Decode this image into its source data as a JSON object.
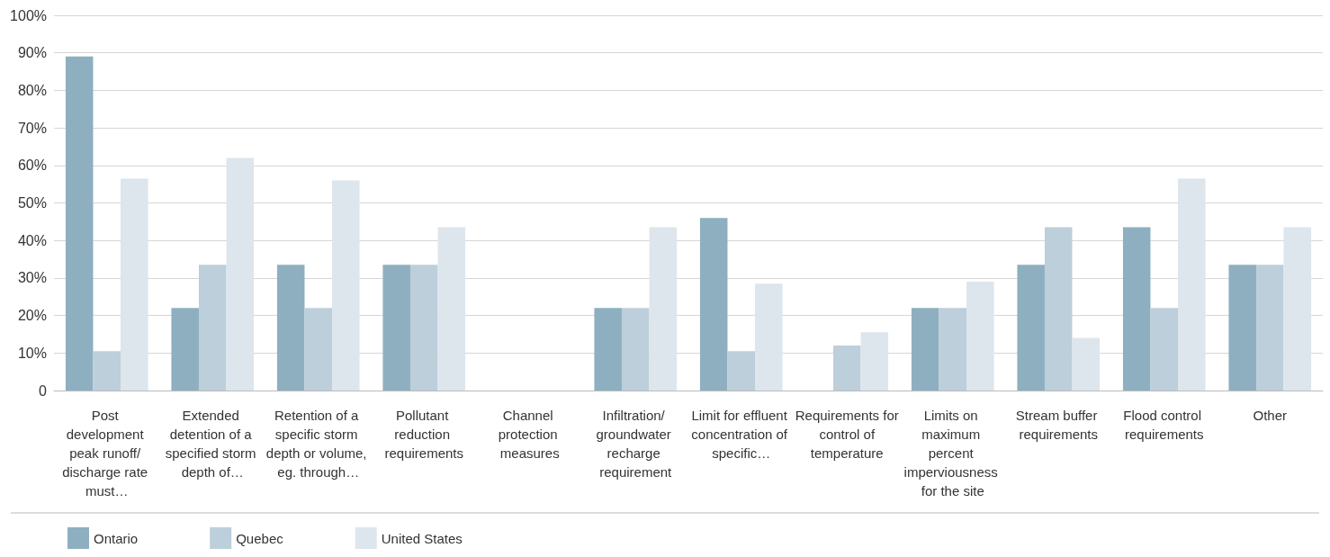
{
  "chart_data": {
    "type": "bar",
    "categories": [
      "Post development peak runoff/ discharge rate must…",
      "Extended detention of a specified storm depth of…",
      "Retention of a specific storm depth or volume, eg. through…",
      "Pollutant reduction requirements",
      "Channel protection measures",
      "Infiltration/ groundwater recharge requirement",
      "Limit for effluent concentration of specific…",
      "Requirements for control of temperature",
      "Limits on maximum percent imperviousness for the site",
      "Stream buffer requirements",
      "Flood control requirements",
      "Other"
    ],
    "series": [
      {
        "name": "Ontario",
        "color": "#8eafc0",
        "values": [
          89,
          22,
          33.5,
          33.5,
          0,
          22,
          46,
          0,
          22,
          33.5,
          43.5,
          33.5
        ]
      },
      {
        "name": "Quebec",
        "color": "#bccfda",
        "values": [
          10.5,
          33.5,
          22,
          33.5,
          0,
          22,
          10.5,
          12,
          22,
          43.5,
          22,
          33.5
        ]
      },
      {
        "name": "United States",
        "color": "#dde6ec",
        "values": [
          56.5,
          62,
          56,
          43.5,
          0,
          43.5,
          28.5,
          15.5,
          29,
          14,
          56.5,
          43.5
        ]
      }
    ],
    "ylim": [
      0,
      100
    ],
    "yticks": [
      0,
      {
        "value": 10,
        "label": "10%"
      },
      {
        "value": 20,
        "label": "20%"
      },
      {
        "value": 30,
        "label": "30%"
      },
      {
        "value": 40,
        "label": "40%"
      },
      {
        "value": 50,
        "label": "50%"
      },
      {
        "value": 60,
        "label": "60%"
      },
      {
        "value": 70,
        "label": "70%"
      },
      {
        "value": 80,
        "label": "80%"
      },
      {
        "value": 90,
        "label": "90%"
      },
      {
        "value": 100,
        "label": "100%"
      }
    ],
    "grid": "y",
    "legend": "bottom left"
  }
}
